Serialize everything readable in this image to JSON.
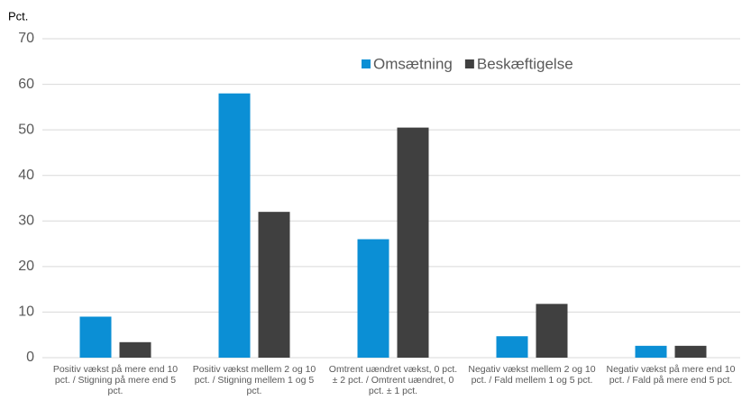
{
  "chart_data": {
    "type": "bar",
    "y_label": "Pct.",
    "categories": [
      "Positiv vækst på mere end 10 pct. / Stigning på mere end 5 pct.",
      "Positiv vækst mellem 2 og 10 pct. / Stigning mellem 1 og 5 pct.",
      "Omtrent uændret vækst, 0 pct. ± 2 pct. / Omtrent uændret, 0 pct. ± 1 pct.",
      "Negativ vækst mellem 2 og 10 pct. / Fald mellem 1 og 5 pct.",
      "Negativ vækst på mere end 10 pct. / Fald på mere end 5 pct."
    ],
    "series": [
      {
        "name": "Omsætning",
        "color": "#0b8fd5",
        "values": [
          9,
          58,
          26,
          4.7,
          2.6
        ]
      },
      {
        "name": "Beskæftigelse",
        "color": "#404040",
        "values": [
          3.4,
          32,
          50.5,
          11.8,
          2.6
        ]
      }
    ],
    "ylim": [
      0,
      70
    ],
    "yticks": [
      0,
      10,
      20,
      30,
      40,
      50,
      60,
      70
    ],
    "grid": true,
    "legend": "top"
  }
}
